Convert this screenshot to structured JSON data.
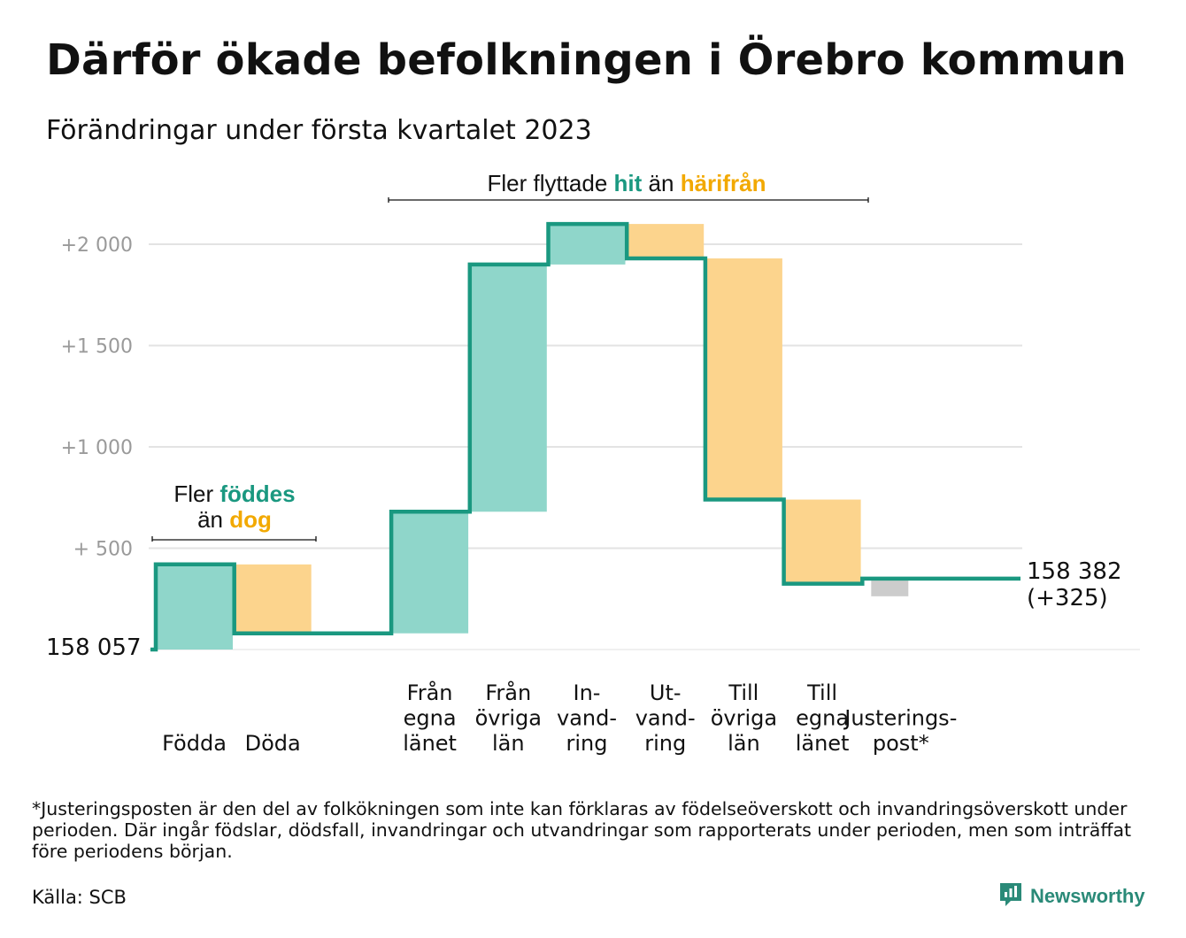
{
  "title": "Därför ökade befolkningen i Örebro kommun",
  "subtitle": "Förändringar under första kvartalet 2023",
  "colors": {
    "gain_fill": "#8fd6ca",
    "loss_fill": "#fcd48d",
    "adjust_fill": "#cccccc",
    "line": "#1a9880",
    "teal_text": "#1a9880",
    "orange_text": "#f2a900",
    "grid": "#e3e3e3",
    "tick_text": "#9a9a9a"
  },
  "annotations": {
    "natural": {
      "line1": "Fler",
      "hl1": "föddes",
      "line2": "än",
      "hl2": "dog"
    },
    "migration": {
      "pre": "Fler flyttade",
      "hl1": "hit",
      "mid": "än",
      "hl2": "härifrån"
    }
  },
  "start_label": "158 057",
  "end_label": {
    "value": "158 382",
    "change": "(+325)"
  },
  "footnote": "*Justeringsposten är den del av folkökningen som inte kan förklaras av födelseöverskott och invandringsöverskott under perioden. Där ingår födslar, dödsfall, invandringar och utvandringar som rapporterats under perioden, men som inträffat före periodens början.",
  "source": "Källa: SCB",
  "brand": {
    "name": "Newsworthy",
    "icon": "newsworthy-logo-icon"
  },
  "chart_data": {
    "type": "waterfall",
    "title": "Därför ökade befolkningen i Örebro kommun",
    "subtitle": "Förändringar under första kvartalet 2023",
    "baseline": 158057,
    "end_total": 158382,
    "net_change": 325,
    "ylim": [
      0,
      2100
    ],
    "yticks": [
      {
        "value": 2000,
        "label": "+2 000"
      },
      {
        "value": 1500,
        "label": "+1 500"
      },
      {
        "value": 1000,
        "label": "+1 000"
      },
      {
        "value": 500,
        "label": "+ 500"
      }
    ],
    "categories": [
      {
        "label": [
          "Födda"
        ],
        "value": 420,
        "kind": "gain"
      },
      {
        "label": [
          "Döda"
        ],
        "value": -340,
        "kind": "loss"
      },
      {
        "label": [
          "Från",
          "egna",
          "länet"
        ],
        "value": 600,
        "kind": "gain"
      },
      {
        "label": [
          "Från",
          "övriga",
          "län"
        ],
        "value": 1220,
        "kind": "gain"
      },
      {
        "label": [
          "In-",
          "vand-",
          "ring"
        ],
        "value": 200,
        "kind": "gain"
      },
      {
        "label": [
          "Ut-",
          "vand-",
          "ring"
        ],
        "value": -170,
        "kind": "loss"
      },
      {
        "label": [
          "Till",
          "övriga",
          "län"
        ],
        "value": -1190,
        "kind": "loss"
      },
      {
        "label": [
          "Till",
          "egna",
          "länet"
        ],
        "value": -415,
        "kind": "loss"
      },
      {
        "label": [
          "Justerings-",
          "post*"
        ],
        "value": 0,
        "kind": "adjust"
      }
    ],
    "grid": true
  }
}
